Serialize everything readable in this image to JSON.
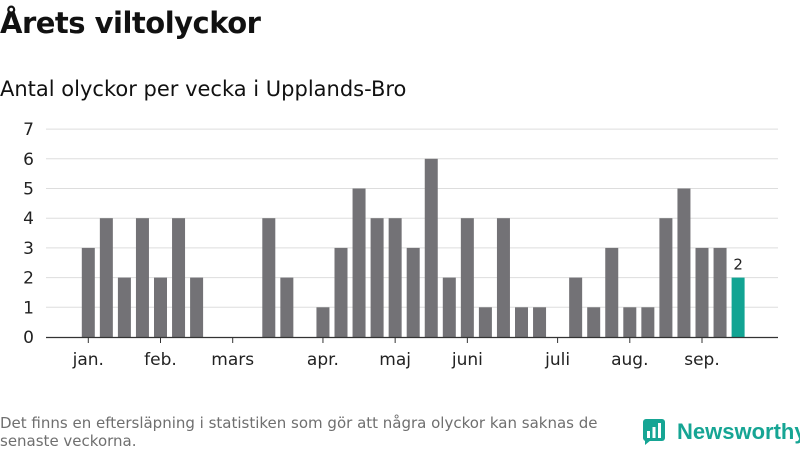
{
  "header": {
    "title": "Årets viltolyckor",
    "subtitle": "Antal olyckor per vecka i Upplands-Bro"
  },
  "footer": {
    "note": "Det finns en eftersläpning i statistiken som gör att några olyckor kan saknas de senaste veckorna.",
    "brand": "Newsworthy"
  },
  "colors": {
    "bar": "#737276",
    "highlight": "#12a493",
    "grid": "#dddddd",
    "axis": "#333333",
    "brand": "#16a594"
  },
  "icons": {
    "logo": "bar-chart-icon"
  },
  "chart_data": {
    "type": "bar",
    "title": "Antal olyckor per vecka i Upplands-Bro",
    "xlabel": "",
    "ylabel": "",
    "ylim": [
      0,
      7
    ],
    "yticks": [
      0,
      1,
      2,
      3,
      4,
      5,
      6,
      7
    ],
    "grid": true,
    "x_tick_labels": [
      {
        "label": "jan.",
        "week": 1
      },
      {
        "label": "feb.",
        "week": 5
      },
      {
        "label": "mars",
        "week": 9
      },
      {
        "label": "apr.",
        "week": 14
      },
      {
        "label": "maj",
        "week": 18
      },
      {
        "label": "juni",
        "week": 22
      },
      {
        "label": "juli",
        "week": 27
      },
      {
        "label": "aug.",
        "week": 31
      },
      {
        "label": "sep.",
        "week": 35
      }
    ],
    "weeks": [
      1,
      2,
      3,
      4,
      5,
      6,
      7,
      8,
      9,
      10,
      11,
      12,
      13,
      14,
      15,
      16,
      17,
      18,
      19,
      20,
      21,
      22,
      23,
      24,
      25,
      26,
      27,
      28,
      29,
      30,
      31,
      32,
      33,
      34,
      35,
      36,
      37
    ],
    "values": [
      3,
      4,
      2,
      4,
      2,
      4,
      2,
      0,
      0,
      0,
      4,
      2,
      0,
      1,
      3,
      5,
      4,
      4,
      3,
      6,
      2,
      4,
      1,
      4,
      1,
      1,
      0,
      2,
      1,
      3,
      1,
      1,
      4,
      5,
      3,
      3,
      2
    ],
    "highlight_index": 36,
    "highlight_label": "2"
  }
}
